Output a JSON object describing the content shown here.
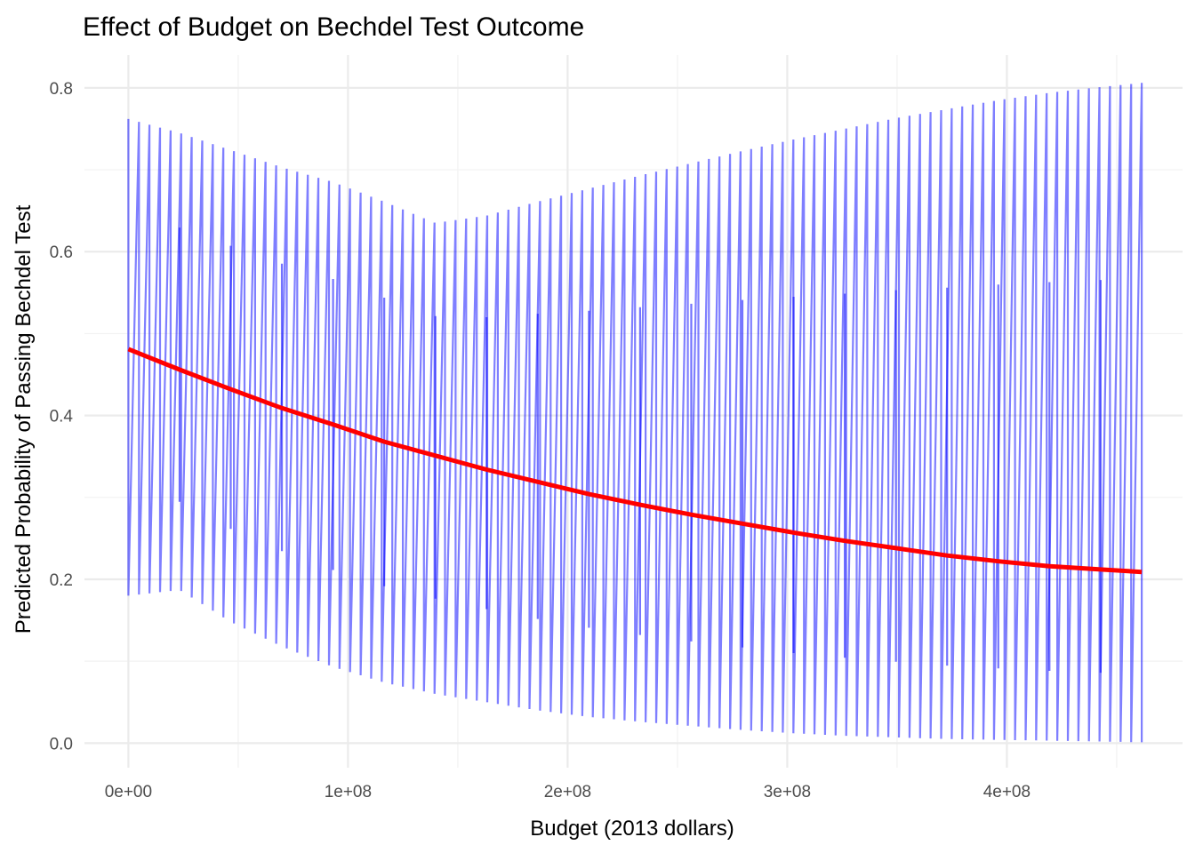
{
  "chart_data": {
    "type": "line",
    "title": "Effect of Budget on Bechdel Test Outcome",
    "xlabel": "Budget (2013 dollars)",
    "ylabel": "Predicted Probability of Passing Bechdel Test",
    "xlim": [
      -20000000,
      480000000
    ],
    "ylim": [
      -0.03,
      0.84
    ],
    "x_ticks": [
      0,
      100000000,
      200000000,
      300000000,
      400000000
    ],
    "x_tick_labels": [
      "0e+00",
      "1e+08",
      "2e+08",
      "3e+08",
      "4e+08"
    ],
    "y_ticks": [
      0,
      0.2,
      0.4,
      0.6,
      0.8
    ],
    "y_tick_labels": [
      "0.0",
      "0.2",
      "0.4",
      "0.6",
      "0.8"
    ],
    "grid": true,
    "legend": "none",
    "series": [
      {
        "role": "predicted-probability",
        "color": "#ff0000",
        "x": [
          0,
          23300000,
          46600000,
          69900000,
          93200000,
          116500000,
          139800000,
          163100000,
          186400000,
          209700000,
          233000000,
          256300000,
          279600000,
          302900000,
          326200000,
          349500000,
          372800000,
          396100000,
          419400000,
          442700000,
          461400000
        ],
        "y": [
          0.481,
          0.456,
          0.432,
          0.409,
          0.389,
          0.368,
          0.351,
          0.334,
          0.319,
          0.304,
          0.291,
          0.279,
          0.268,
          0.257,
          0.247,
          0.238,
          0.229,
          0.222,
          0.216,
          0.212,
          0.209
        ]
      },
      {
        "role": "confidence-interval",
        "color": "#0000ff",
        "x": [
          0,
          23300000,
          46600000,
          69900000,
          93200000,
          116500000,
          139800000,
          163100000,
          186400000,
          209700000,
          233000000,
          256300000,
          279600000,
          302900000,
          326200000,
          349500000,
          372800000,
          396100000,
          419400000,
          442700000,
          461400000
        ],
        "upper": [
          0.762,
          0.745,
          0.724,
          0.703,
          0.685,
          0.661,
          0.635,
          0.644,
          0.661,
          0.677,
          0.693,
          0.708,
          0.723,
          0.737,
          0.75,
          0.763,
          0.774,
          0.785,
          0.794,
          0.801,
          0.806
        ],
        "lower": [
          0.18,
          0.187,
          0.148,
          0.118,
          0.093,
          0.074,
          0.06,
          0.05,
          0.04,
          0.032,
          0.026,
          0.021,
          0.016,
          0.012,
          0.009,
          0.007,
          0.005,
          0.004,
          0.003,
          0.002,
          0.001
        ]
      }
    ]
  }
}
